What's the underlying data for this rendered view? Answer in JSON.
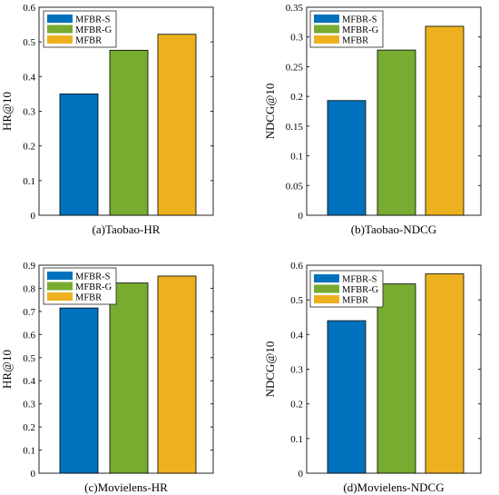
{
  "colors": {
    "MFBR-S": "#0072BD",
    "MFBR-G": "#77AC30",
    "MFBR": "#EDB120"
  },
  "chart_data": [
    {
      "type": "bar",
      "categories": [
        "MFBR-S",
        "MFBR-G",
        "MFBR"
      ],
      "values": [
        0.35,
        0.476,
        0.522
      ],
      "ylabel": "HR@10",
      "xlabel": "(a)Taobao-HR",
      "ylim": [
        0,
        0.6
      ],
      "yticks": [
        "0",
        "0.1",
        "0.2",
        "0.3",
        "0.4",
        "0.5",
        "0.6"
      ],
      "legend": [
        "MFBR-S",
        "MFBR-G",
        "MFBR"
      ],
      "legend_position": "top-left"
    },
    {
      "type": "bar",
      "categories": [
        "MFBR-S",
        "MFBR-G",
        "MFBR"
      ],
      "values": [
        0.193,
        0.278,
        0.318
      ],
      "ylabel": "NDCG@10",
      "xlabel": "(b)Taobao-NDCG",
      "ylim": [
        0,
        0.35
      ],
      "yticks": [
        "0",
        "0.05",
        "0.1",
        "0.15",
        "0.2",
        "0.25",
        "0.3",
        "0.35"
      ],
      "legend": [
        "MFBR-S",
        "MFBR-G",
        "MFBR"
      ],
      "legend_position": "top-left"
    },
    {
      "type": "bar",
      "categories": [
        "MFBR-S",
        "MFBR-G",
        "MFBR"
      ],
      "values": [
        0.715,
        0.823,
        0.853
      ],
      "ylabel": "HR@10",
      "xlabel": "(c)Movielens-HR",
      "ylim": [
        0,
        0.9
      ],
      "yticks": [
        "0",
        "0.1",
        "0.2",
        "0.3",
        "0.4",
        "0.5",
        "0.6",
        "0.7",
        "0.8",
        "0.9"
      ],
      "legend": [
        "MFBR-S",
        "MFBR-G",
        "MFBR"
      ],
      "legend_position": "top-left"
    },
    {
      "type": "bar",
      "categories": [
        "MFBR-S",
        "MFBR-G",
        "MFBR"
      ],
      "values": [
        0.44,
        0.546,
        0.575
      ],
      "ylabel": "NDCG@10",
      "xlabel": "(d)Movielens-NDCG",
      "ylim": [
        0,
        0.6
      ],
      "yticks": [
        "0",
        "0.1",
        "0.2",
        "0.3",
        "0.4",
        "0.5",
        "0.6"
      ],
      "legend": [
        "MFBR-S",
        "MFBR-G",
        "MFBR"
      ],
      "legend_position": "top-left"
    }
  ]
}
